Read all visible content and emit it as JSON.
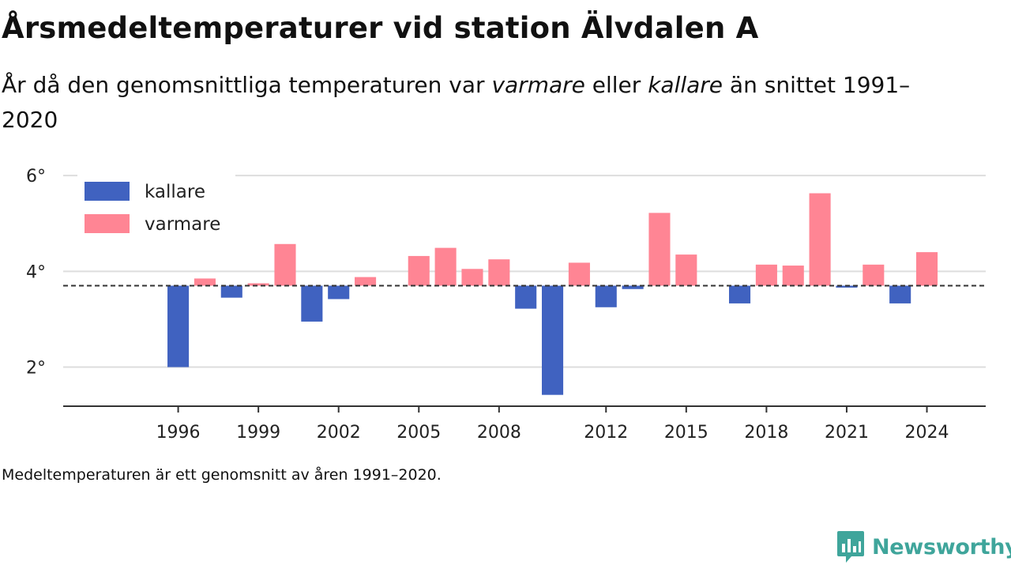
{
  "title": "Årsmedeltemperaturer vid station Älvdalen A",
  "subtitle": {
    "part1": "År då den genomsnittliga temperaturen var ",
    "warm_word": "varmare",
    "part2": " eller ",
    "cold_word": "kallare",
    "part3": " än snittet 1991–2020"
  },
  "footnote": "Medeltemperaturen är ett genomsnitt av åren 1991–2020.",
  "brand": {
    "name": "Newsworthy",
    "logo_icon": "bar-chart-speech-bubble-icon",
    "color": "#3fa59b"
  },
  "chart_data": {
    "type": "bar",
    "title": "Årsmedeltemperaturer vid station Älvdalen A",
    "baseline": 3.7,
    "ylim": [
      1.2,
      6.2
    ],
    "yticks": [
      2,
      4,
      6
    ],
    "ytick_labels": [
      "2°",
      "4°",
      "6°"
    ],
    "xlim": [
      1991.7,
      2026.2
    ],
    "xticks": [
      1996,
      1999,
      2002,
      2005,
      2008,
      2012,
      2015,
      2018,
      2021,
      2024
    ],
    "xtick_labels": [
      "1996",
      "1999",
      "2002",
      "2005",
      "2008",
      "2012",
      "2015",
      "2018",
      "2021",
      "2024"
    ],
    "grid": true,
    "legend_position": "top-left",
    "colors": {
      "kallare": "#4062c0",
      "varmare": "#ff8594",
      "baseline": "#333333"
    },
    "legend": [
      {
        "key": "kallare",
        "label": "kallare"
      },
      {
        "key": "varmare",
        "label": "varmare"
      }
    ],
    "x": [
      1996,
      1997,
      1998,
      1999,
      2000,
      2001,
      2002,
      2003,
      2005,
      2006,
      2007,
      2008,
      2009,
      2010,
      2011,
      2012,
      2013,
      2014,
      2015,
      2017,
      2018,
      2019,
      2020,
      2021,
      2022,
      2023,
      2024
    ],
    "values": [
      2.0,
      3.85,
      3.45,
      3.75,
      4.57,
      2.95,
      3.42,
      3.88,
      4.32,
      4.49,
      4.05,
      4.25,
      3.22,
      1.42,
      4.18,
      3.25,
      3.63,
      5.22,
      4.35,
      3.33,
      4.14,
      4.12,
      5.63,
      3.66,
      4.14,
      3.33,
      4.4
    ]
  }
}
